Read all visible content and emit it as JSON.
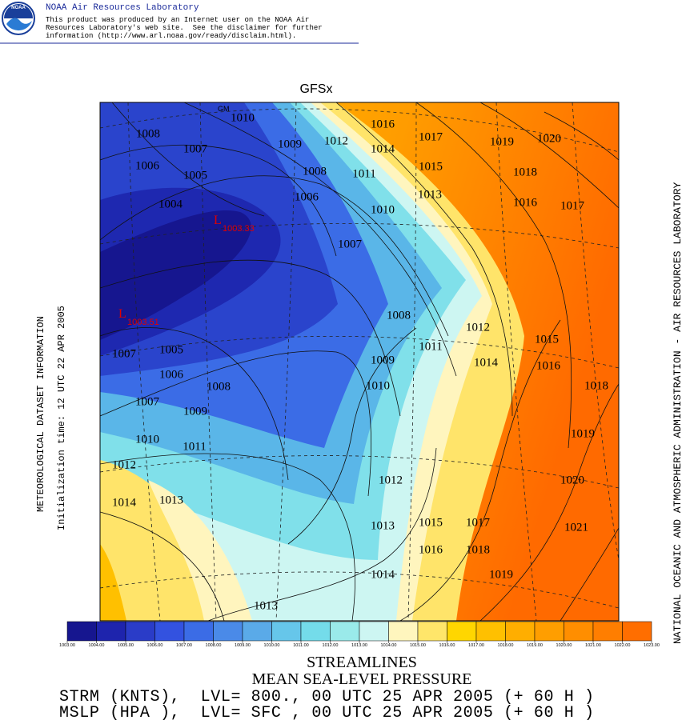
{
  "header": {
    "title": "NOAA Air Resources Laboratory",
    "logo_text": "NOAA",
    "disclaimer": [
      "This product was produced by an Internet user on the NOAA Air",
      "Resources Laboratory's web site.  See the disclaimer for further",
      "information (http://www.arl.noaa.gov/ready/disclaim.html)."
    ]
  },
  "map": {
    "title": "GFSx",
    "marker": "GM",
    "left_label": "METEOROLOGICAL DATASET INFORMATION",
    "init_label": "Initialization time: 12 UTC 22 APR 2005",
    "right_label": "NATIONAL OCEANIC AND ATMOSPHERIC ADMINISTRATION - AIR RESOURCES LABORATORY",
    "contour_labels": [
      1010,
      1016,
      1017,
      1019,
      1020,
      1008,
      1009,
      1012,
      1014,
      1007,
      1006,
      1005,
      1008,
      1011,
      1015,
      1018,
      1004,
      1006,
      1013,
      1016,
      1017,
      1010,
      1007,
      1008,
      1012,
      1015,
      1007,
      1005,
      1009,
      1011,
      1014,
      1016,
      1006,
      1008,
      1010,
      1018,
      1007,
      1009,
      1010,
      1011,
      1019,
      1012,
      1012,
      1020,
      1014,
      1013,
      1013,
      1015,
      1017,
      1021,
      1016,
      1018,
      1019,
      1014,
      1013
    ],
    "lows": [
      {
        "symbol": "L",
        "value": 1003.33
      },
      {
        "symbol": "L",
        "value": 1003.51
      }
    ]
  },
  "colorbar": {
    "colors": [
      "#16168f",
      "#1e24ad",
      "#2a3cc8",
      "#3352e0",
      "#3b6ce6",
      "#4a8ae8",
      "#5aaae8",
      "#66c6ea",
      "#74dcea",
      "#9aeaea",
      "#cdf6f2",
      "#fff6be",
      "#ffe66a",
      "#ffd600",
      "#ffc000",
      "#ffae00",
      "#ff9e00",
      "#ff8e00",
      "#ff7e00",
      "#ff6e00"
    ],
    "ticks": [
      {
        "value": 1003,
        "label": "1003.00"
      },
      {
        "value": 1004,
        "label": "1004.00"
      },
      {
        "value": 1005,
        "label": "1005.00"
      },
      {
        "value": 1006,
        "label": "1006.00"
      },
      {
        "value": 1007,
        "label": "1007.00"
      },
      {
        "value": 1008,
        "label": "1008.00"
      },
      {
        "value": 1009,
        "label": "1009.00"
      },
      {
        "value": 1010,
        "label": "1010.00"
      },
      {
        "value": 1011,
        "label": "1011.00"
      },
      {
        "value": 1012,
        "label": "1012.00"
      },
      {
        "value": 1013,
        "label": "1013.00"
      },
      {
        "value": 1014,
        "label": "1014.00"
      },
      {
        "value": 1015,
        "label": "1015.00"
      },
      {
        "value": 1016,
        "label": "1016.00"
      },
      {
        "value": 1017,
        "label": "1017.00"
      },
      {
        "value": 1018,
        "label": "1018.00"
      },
      {
        "value": 1019,
        "label": "1019.00"
      },
      {
        "value": 1020,
        "label": "1020.00"
      },
      {
        "value": 1021,
        "label": "1021.00"
      },
      {
        "value": 1022,
        "label": "1022.00"
      },
      {
        "value": 1023,
        "label": "1023.00"
      }
    ]
  },
  "footer": {
    "line1": "STREAMLINES",
    "line2": "MEAN SEA-LEVEL PRESSURE",
    "line3": "STRM (KNTS),  LVL= 800., 00 UTC 25 APR 2005 (+ 60 H )",
    "line4": "MSLP (HPA ),  LVL= SFC , 00 UTC 25 APR 2005 (+ 60 H )"
  }
}
